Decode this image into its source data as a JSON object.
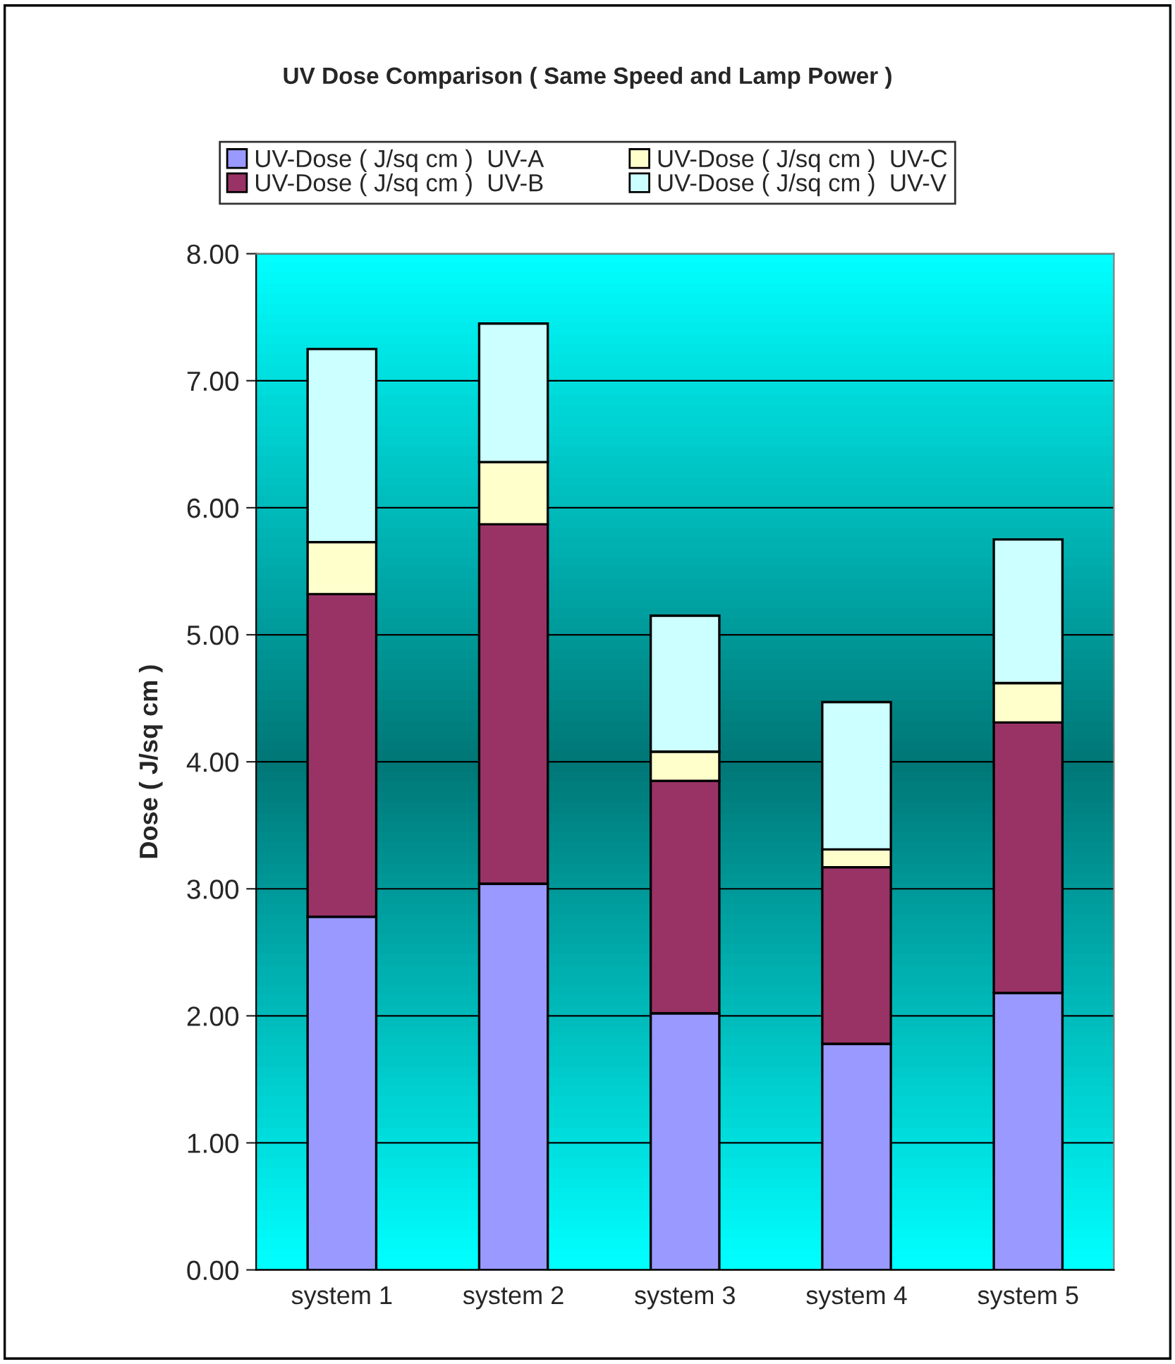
{
  "chart_data": {
    "type": "bar",
    "stacked": true,
    "title": "UV Dose Comparison ( Same Speed and Lamp Power )",
    "ylabel": "Dose ( J/sq cm )",
    "categories": [
      "system 1",
      "system 2",
      "system 3",
      "system 4",
      "system 5"
    ],
    "series": [
      {
        "name": "UV-Dose ( J/sq cm )  UV-A",
        "color": "#9999ff",
        "values": [
          2.78,
          3.04,
          2.02,
          1.78,
          2.18
        ]
      },
      {
        "name": "UV-Dose ( J/sq cm )  UV-B",
        "color": "#993366",
        "values": [
          2.54,
          2.83,
          1.83,
          1.39,
          2.13
        ]
      },
      {
        "name": "UV-Dose ( J/sq cm )  UV-C",
        "color": "#ffffcc",
        "values": [
          0.41,
          0.49,
          0.23,
          0.14,
          0.31
        ]
      },
      {
        "name": "UV-Dose ( J/sq cm )  UV-V",
        "color": "#ccffff",
        "values": [
          1.52,
          1.09,
          1.07,
          1.16,
          1.13
        ]
      }
    ],
    "ylim": [
      0,
      8
    ],
    "yticks": [
      {
        "value": 0,
        "label": "0.00"
      },
      {
        "value": 1,
        "label": "1.00"
      },
      {
        "value": 2,
        "label": "2.00"
      },
      {
        "value": 3,
        "label": "3.00"
      },
      {
        "value": 4,
        "label": "4.00"
      },
      {
        "value": 5,
        "label": "5.00"
      },
      {
        "value": 6,
        "label": "6.00"
      },
      {
        "value": 7,
        "label": "7.00"
      },
      {
        "value": 8,
        "label": "8.00"
      }
    ],
    "grid": "y",
    "legend": "top"
  }
}
